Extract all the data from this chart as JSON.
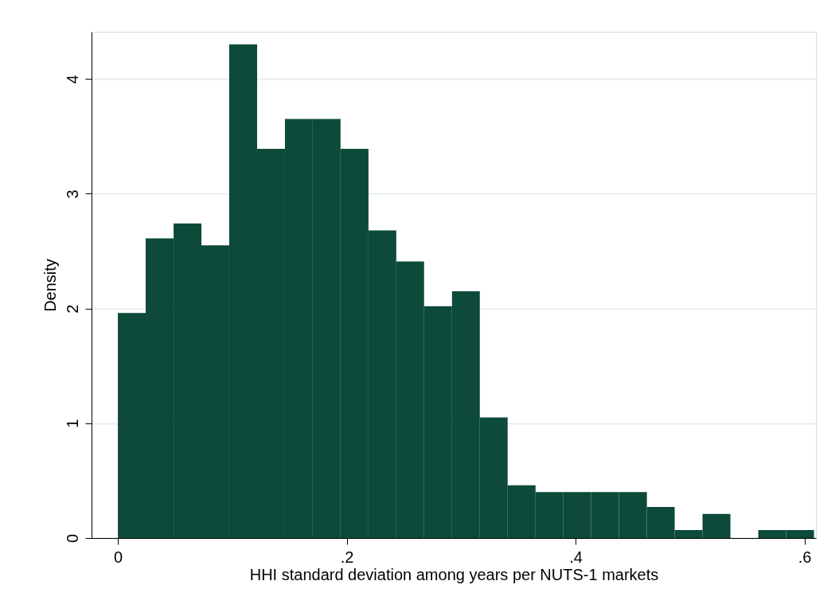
{
  "chart_data": {
    "type": "histogram",
    "xlabel": "HHI standard deviation among years per NUTS-1 markets",
    "ylabel": "Density",
    "bins": [
      0,
      0.0243,
      0.0487,
      0.073,
      0.0973,
      0.1217,
      0.146,
      0.1703,
      0.1946,
      0.219,
      0.2433,
      0.2676,
      0.292,
      0.3163,
      0.3406,
      0.365,
      0.3893,
      0.4136,
      0.4379,
      0.4623,
      0.4866,
      0.5109,
      0.5353,
      0.5596,
      0.5839,
      0.6083
    ],
    "values": [
      1.96,
      2.61,
      2.74,
      2.55,
      4.3,
      3.39,
      3.65,
      3.65,
      3.39,
      2.68,
      2.41,
      2.02,
      2.15,
      1.05,
      0.46,
      0.4,
      0.4,
      0.4,
      0.4,
      0.27,
      0.07,
      0.21,
      0,
      0.07,
      0.07
    ],
    "color": "#0d4a3a",
    "xlim": [
      -0.023,
      0.61
    ],
    "xticks": [
      0,
      {
        "value": 0.2,
        "label": ".2"
      },
      {
        "value": 0.4,
        "label": ".4"
      },
      {
        "value": 0.6,
        "label": ".6"
      }
    ],
    "ylim": [
      0,
      4.41
    ],
    "yticks": [
      0,
      1,
      2,
      3,
      4
    ],
    "grid": "y"
  }
}
